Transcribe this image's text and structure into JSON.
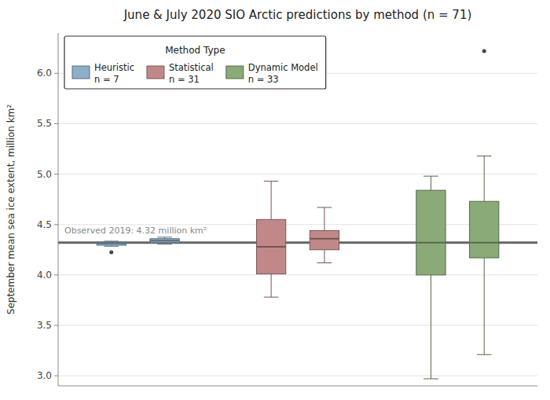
{
  "chart_data": {
    "type": "box",
    "title": "June & July 2020 SIO Arctic predictions by method (n = 71)",
    "ylabel": "September mean sea ice extent, million km²",
    "ylim": [
      2.9,
      6.4
    ],
    "yticks": [
      {
        "value": 3.0,
        "label": "3.0"
      },
      3.5,
      {
        "value": 4.0,
        "label": "4.0"
      },
      4.5,
      {
        "value": 5.0,
        "label": "5.0"
      },
      5.5,
      {
        "value": 6.0,
        "label": "6.0"
      }
    ],
    "grid": true,
    "tick_labels": "y",
    "legend": "upper left",
    "legend_title": "Method Type",
    "reference_line": {
      "value": 4.32,
      "label": "Observed 2019: 4.32 million km²"
    },
    "series": [
      {
        "name": "Heuristic",
        "n_label": "n = 7",
        "color": "#8faec8",
        "boxes": [
          {
            "q1": 4.295,
            "median": 4.315,
            "q3": 4.325,
            "whisker_low": 4.285,
            "whisker_high": 4.335,
            "outliers": [
              4.225
            ]
          },
          {
            "q1": 4.32,
            "median": 4.34,
            "q3": 4.36,
            "whisker_low": 4.305,
            "whisker_high": 4.375,
            "outliers": []
          }
        ]
      },
      {
        "name": "Statistical",
        "n_label": "n = 31",
        "color": "#c08888",
        "boxes": [
          {
            "q1": 4.01,
            "median": 4.28,
            "q3": 4.55,
            "whisker_low": 3.78,
            "whisker_high": 4.93,
            "outliers": []
          },
          {
            "q1": 4.25,
            "median": 4.36,
            "q3": 4.44,
            "whisker_low": 4.12,
            "whisker_high": 4.67,
            "outliers": []
          }
        ]
      },
      {
        "name": "Dynamic Model",
        "n_label": "n = 33",
        "color": "#8aaa78",
        "boxes": [
          {
            "q1": 4.0,
            "median": 4.32,
            "q3": 4.84,
            "whisker_low": 2.97,
            "whisker_high": 4.98,
            "outliers": []
          },
          {
            "q1": 4.17,
            "median": 4.32,
            "q3": 4.73,
            "whisker_low": 3.21,
            "whisker_high": 5.18,
            "outliers": [
              6.22
            ]
          }
        ]
      }
    ]
  }
}
